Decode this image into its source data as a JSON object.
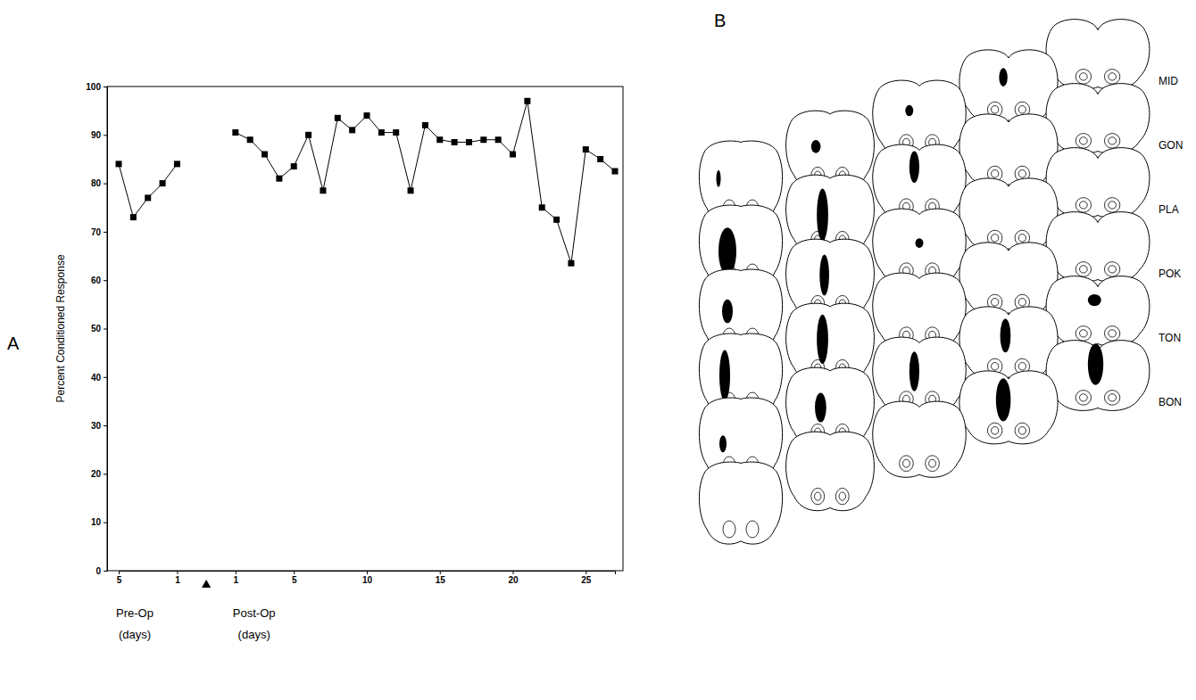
{
  "chart_data": {
    "type": "line",
    "panel_label": "A",
    "y_label": "Percent Conditioned Response",
    "categories": [
      "5",
      null,
      null,
      null,
      "1",
      null,
      null,
      null,
      "1",
      null,
      null,
      null,
      "5",
      null,
      null,
      null,
      null,
      "10",
      null,
      null,
      null,
      null,
      "15",
      null,
      null,
      null,
      null,
      "20",
      null,
      null,
      null,
      null,
      "25",
      null,
      null
    ],
    "values": [
      84,
      73,
      77,
      80,
      84,
      null,
      null,
      null,
      90.5,
      89,
      86,
      81,
      83.5,
      90,
      78.5,
      93.5,
      91,
      94,
      90.5,
      90.5,
      78.5,
      92,
      89,
      88.5,
      88.5,
      89,
      89,
      86,
      97,
      75,
      72.5,
      63.5,
      87,
      85,
      82.5
    ],
    "color": "#000000",
    "marker": "square",
    "ylim": [
      0,
      100
    ],
    "yticks": [
      0,
      10,
      20,
      30,
      40,
      50,
      60,
      70,
      80,
      90,
      100
    ],
    "grid": false,
    "annotations": [
      [
        "Pre-Op",
        "(days)"
      ],
      [
        "Post-Op",
        "(days)"
      ]
    ]
  },
  "diagram": {
    "panel_label": "B",
    "rows": [
      "MID",
      "GON",
      "PLA",
      "POK",
      "TON",
      "BON"
    ]
  }
}
